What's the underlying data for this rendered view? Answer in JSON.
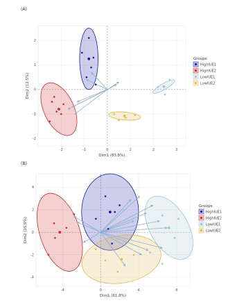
{
  "colors": {
    "HighIUE1": "#1a1aa8",
    "HighIUE2": "#cc2b2b",
    "LowIUE1": "#9ec3d4",
    "LowIUE2": "#e0b84e",
    "arrow": "#8eb0c8"
  },
  "chart_data": [
    {
      "type": "scatter",
      "panel_label": "(A)",
      "xlabel": "Dim1 (83.8%)",
      "ylabel": "Dim2 (12.5%)",
      "xlim": [
        -3,
        3.4
      ],
      "ylim": [
        -2.3,
        2.6
      ],
      "x_ticks": [
        "-2",
        "-1",
        "0",
        "1",
        "2",
        "3"
      ],
      "y_ticks": [
        "2",
        "1",
        "0",
        "-1",
        "-2"
      ],
      "legend": {
        "title": "Groups",
        "position": "right",
        "entries": [
          "HighIUE1",
          "HighIUE2",
          "LowIUE1",
          "LowIUE2"
        ]
      },
      "series": [
        {
          "name": "HighIUE1",
          "points": [
            [
              -0.8,
              2.1
            ],
            [
              -0.6,
              1.3
            ],
            [
              -0.7,
              0.9
            ],
            [
              -0.9,
              0.5
            ],
            [
              -0.5,
              0.2
            ],
            [
              -1.1,
              1.5
            ]
          ],
          "ellipse": {
            "cx": -0.8,
            "cy": 1.25,
            "rx": 0.4,
            "ry": 1.25,
            "angle": 0
          }
        },
        {
          "name": "HighIUE2",
          "points": [
            [
              -2.4,
              -0.5
            ],
            [
              -2.2,
              -0.9
            ],
            [
              -2.0,
              -1.0
            ],
            [
              -2.5,
              -1.3
            ],
            [
              -1.9,
              -0.6
            ],
            [
              -2.3,
              -0.3
            ]
          ],
          "ellipse": {
            "cx": -2.1,
            "cy": -0.8,
            "rx": 0.65,
            "ry": 1.15,
            "angle": -25
          }
        },
        {
          "name": "LowIUE1",
          "points": [
            [
              2.2,
              0.1
            ],
            [
              2.5,
              -0.2
            ],
            [
              2.7,
              0.4
            ]
          ],
          "ellipse": {
            "cx": 2.45,
            "cy": 0.12,
            "rx": 0.55,
            "ry": 0.12,
            "angle": -30
          }
        },
        {
          "name": "LowIUE2",
          "points": [
            [
              0.3,
              -1.0
            ],
            [
              0.8,
              -1.15
            ],
            [
              1.2,
              -1.05
            ],
            [
              0.5,
              -1.25
            ]
          ],
          "ellipse": {
            "cx": 0.75,
            "cy": -1.08,
            "rx": 0.7,
            "ry": 0.16,
            "angle": 5
          }
        }
      ],
      "arrows": [
        {
          "x": 0.5,
          "y": 0.3,
          "label": ""
        },
        {
          "x": 0.4,
          "y": 0.2,
          "label": ""
        },
        {
          "x": -0.9,
          "y": 0.4,
          "label": "",
          "note": ""
        },
        {
          "x": -0.7,
          "y": 0.7,
          "label": ""
        },
        {
          "x": -1.7,
          "y": -0.8,
          "label": ""
        },
        {
          "x": -1.4,
          "y": -1.0,
          "label": ""
        },
        {
          "x": -1.5,
          "y": -0.7,
          "label": ""
        },
        {
          "x": -1.3,
          "y": -0.5,
          "label": ""
        }
      ]
    },
    {
      "type": "scatter",
      "panel_label": "(B)",
      "xlabel": "Dim1 (61.8%)",
      "ylabel": "Dim2 (15.9%)",
      "xlim": [
        -6.8,
        9.4
      ],
      "ylim": [
        -4.8,
        5.2
      ],
      "x_ticks": [
        "-4",
        "0",
        "4",
        "8"
      ],
      "y_ticks": [
        "4",
        "2",
        "0",
        "-2",
        "-4"
      ],
      "legend": {
        "title": "Groups",
        "position": "right",
        "entries": [
          "HighIUE1",
          "HighIUE2",
          "LowIUE1",
          "LowIUE2"
        ]
      },
      "series": [
        {
          "name": "HighIUE1",
          "points": [
            [
              0.5,
              3.2
            ],
            [
              1.5,
              1.8
            ],
            [
              -0.5,
              1.2
            ],
            [
              0.8,
              0.3
            ],
            [
              2.0,
              2.4
            ],
            [
              1.2,
              -1.0
            ]
          ],
          "ellipse": {
            "cx": 1.0,
            "cy": 1.8,
            "rx": 3.0,
            "ry": 3.4,
            "angle": 0
          }
        },
        {
          "name": "HighIUE2",
          "points": [
            [
              -5.5,
              -2.0
            ],
            [
              -4.8,
              -0.5
            ],
            [
              -3.6,
              0.4
            ],
            [
              -2.8,
              1.6
            ],
            [
              -4.9,
              0.8
            ]
          ],
          "ellipse": {
            "cx": -4.3,
            "cy": 0.0,
            "rx": 2.1,
            "ry": 3.6,
            "angle": -18
          }
        },
        {
          "name": "LowIUE1",
          "points": [
            [
              6.5,
              1.5
            ],
            [
              7.8,
              -0.5
            ],
            [
              8.2,
              1.2
            ],
            [
              5.2,
              -1.8
            ],
            [
              6.5,
              -2.8
            ]
          ],
          "ellipse": {
            "cx": 7.2,
            "cy": 0.4,
            "rx": 2.0,
            "ry": 3.1,
            "angle": -30
          }
        },
        {
          "name": "LowIUE2",
          "points": [
            [
              0.5,
              -2.5
            ],
            [
              1.8,
              -3.5
            ],
            [
              3.5,
              -2.0
            ],
            [
              -0.5,
              -1.5
            ]
          ],
          "ellipse": {
            "cx": 2.2,
            "cy": -2.4,
            "rx": 4.2,
            "ry": 2.1,
            "angle": -10
          }
        }
      ],
      "arrows": [
        {
          "x": 3.2,
          "y": 2.9
        },
        {
          "x": 4.1,
          "y": 3.2
        },
        {
          "x": 5.5,
          "y": 2.4
        },
        {
          "x": 6.2,
          "y": 1.0
        },
        {
          "x": 7.0,
          "y": 0.4
        },
        {
          "x": 6.5,
          "y": -1.4
        },
        {
          "x": 4.3,
          "y": -2.0
        },
        {
          "x": 2.6,
          "y": -3.0
        },
        {
          "x": -2.8,
          "y": 1.4
        },
        {
          "x": -2.5,
          "y": 0.9
        },
        {
          "x": -1.8,
          "y": -0.9
        },
        {
          "x": 3.5,
          "y": 1.0
        },
        {
          "x": 5.0,
          "y": -1.6
        },
        {
          "x": 4.8,
          "y": 1.7
        }
      ]
    }
  ]
}
